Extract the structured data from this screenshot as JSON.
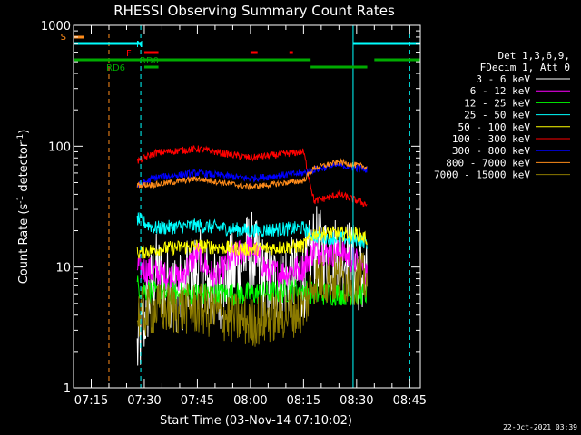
{
  "chart_data": {
    "type": "line",
    "title": "RHESSI Observing Summary Count Rates",
    "xlabel": "Start Time (03-Nov-14 07:10:02)",
    "ylabel": "Count Rate (s",
    "ylabel_sup": "-1",
    "ylabel_mid": " detector",
    "ylabel_end": ")",
    "timestamp": "22-Oct-2021 03:39",
    "y_scale": "log",
    "ylim": [
      1,
      1000
    ],
    "xlim": [
      "07:10",
      "08:48"
    ],
    "x_ticks": [
      "07:15",
      "07:30",
      "07:45",
      "08:00",
      "08:15",
      "08:30",
      "08:45"
    ],
    "y_ticks": [
      "1",
      "10",
      "100",
      "1000"
    ],
    "legend_header": [
      "Det 1,3,6,9,",
      "FDecim 1, Att 0"
    ],
    "series": [
      {
        "name": "3 - 6 keV",
        "color": "#ffffff",
        "x": [
          "07:28",
          "07:33",
          "07:40",
          "07:45",
          "07:50",
          "07:55",
          "08:00",
          "08:05",
          "08:10",
          "08:15",
          "08:18",
          "08:22",
          "08:26",
          "08:30",
          "08:33"
        ],
        "y": [
          2,
          9,
          6,
          10,
          6,
          9,
          14,
          7,
          8,
          8,
          15,
          12,
          13,
          10,
          7
        ]
      },
      {
        "name": "6 - 12 keV",
        "color": "#ff00ff",
        "x": [
          "07:28",
          "07:33",
          "07:40",
          "07:45",
          "07:50",
          "07:55",
          "08:00",
          "08:05",
          "08:10",
          "08:15",
          "08:18",
          "08:22",
          "08:26",
          "08:30",
          "08:33"
        ],
        "y": [
          10,
          9,
          8,
          13,
          8,
          12,
          15,
          9,
          9,
          10,
          14,
          13,
          13,
          11,
          9
        ]
      },
      {
        "name": "12 - 25 keV",
        "color": "#00ff00",
        "x": [
          "07:28",
          "07:33",
          "07:45",
          "08:00",
          "08:15",
          "08:18",
          "08:30",
          "08:33"
        ],
        "y": [
          7,
          6,
          6,
          6,
          6.5,
          6,
          6,
          6
        ]
      },
      {
        "name": "25 - 50 keV",
        "color": "#00ffff",
        "x": [
          "07:28",
          "07:33",
          "07:45",
          "08:00",
          "08:15",
          "08:18",
          "08:30",
          "08:33"
        ],
        "y": [
          25,
          21,
          22,
          20,
          21,
          18,
          17,
          16
        ]
      },
      {
        "name": "50 - 100 keV",
        "color": "#ffff00",
        "x": [
          "07:28",
          "07:33",
          "07:45",
          "08:00",
          "08:15",
          "08:18",
          "08:30",
          "08:33"
        ],
        "y": [
          13,
          14,
          15,
          14,
          15,
          19,
          19,
          17
        ]
      },
      {
        "name": "100 - 300 keV",
        "color": "#ff0000",
        "x": [
          "07:28",
          "07:33",
          "07:45",
          "08:00",
          "08:15",
          "08:18",
          "08:25",
          "08:33"
        ],
        "y": [
          75,
          88,
          95,
          80,
          90,
          35,
          40,
          33
        ]
      },
      {
        "name": "300 - 800 keV",
        "color": "#0000ff",
        "x": [
          "07:28",
          "07:33",
          "07:45",
          "08:00",
          "08:15",
          "08:18",
          "08:25",
          "08:33"
        ],
        "y": [
          47,
          55,
          60,
          54,
          60,
          64,
          70,
          64
        ]
      },
      {
        "name": "800 - 7000 keV",
        "color": "#ff8c1a",
        "x": [
          "07:28",
          "07:33",
          "07:45",
          "08:00",
          "08:15",
          "08:18",
          "08:25",
          "08:33"
        ],
        "y": [
          48,
          48,
          54,
          46,
          52,
          66,
          74,
          67
        ]
      },
      {
        "name": "7000 - 15000 keV",
        "color": "#8b7a00",
        "x": [
          "07:28",
          "07:33",
          "07:45",
          "08:00",
          "08:15",
          "08:18",
          "08:30",
          "08:33"
        ],
        "y": [
          4,
          4.5,
          4.5,
          3.5,
          4.5,
          8,
          8,
          8
        ]
      }
    ],
    "flag_labels": [
      {
        "label": "S",
        "color": "#ff8c1a"
      },
      {
        "label": "N",
        "color": "#00ffff"
      },
      {
        "label": "F",
        "color": "#ff0000"
      },
      {
        "label": "RD0",
        "color": "#00aa00"
      },
      {
        "label": "RD6",
        "color": "#00aa00"
      }
    ]
  }
}
